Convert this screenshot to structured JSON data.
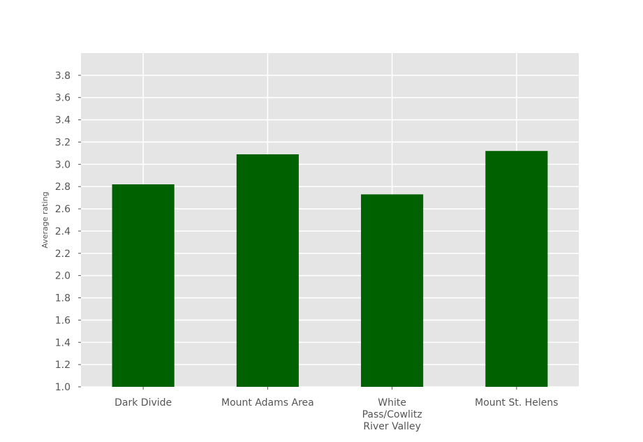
{
  "chart_data": {
    "type": "bar",
    "title": "",
    "xlabel": "",
    "ylabel": "Average rating",
    "categories": [
      "Dark Divide",
      "Mount Adams Area",
      "White Pass/Cowlitz River Valley",
      "Mount St. Helens"
    ],
    "category_label_lines": [
      [
        "Dark Divide"
      ],
      [
        "Mount Adams Area"
      ],
      [
        "White",
        "Pass/Cowlitz",
        "River Valley"
      ],
      [
        "Mount St. Helens"
      ]
    ],
    "values": [
      2.82,
      3.09,
      2.73,
      3.12
    ],
    "ylim": [
      1.0,
      4.0
    ],
    "yticks": [
      "1.0",
      "1.2",
      "1.4",
      "1.6",
      "1.8",
      "2.0",
      "2.2",
      "2.4",
      "2.6",
      "2.8",
      "3.0",
      "3.2",
      "3.4",
      "3.6",
      "3.8"
    ],
    "grid": true,
    "legend": "none",
    "colors": {
      "bar": "#006100",
      "plot_background": "#e5e5e5",
      "grid": "#ffffff",
      "text": "#555555"
    }
  }
}
